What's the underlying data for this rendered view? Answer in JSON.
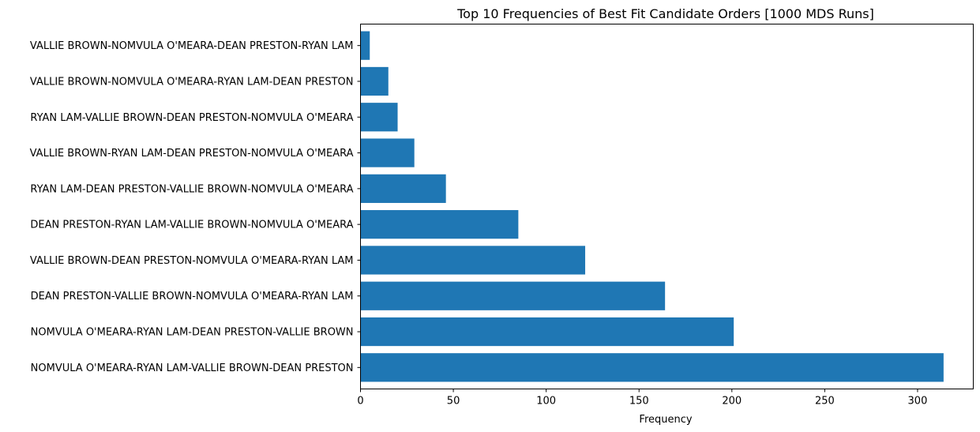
{
  "colors": {
    "bar": "#1f77b4",
    "axis": "#000000",
    "background": "#ffffff"
  },
  "chart_data": {
    "type": "bar",
    "orientation": "horizontal",
    "title": "Top 10 Frequencies of Best Fit Candidate Orders [1000 MDS Runs]",
    "xlabel": "Frequency",
    "ylabel": "",
    "xlim": [
      0,
      330
    ],
    "xticks": [
      0,
      50,
      100,
      150,
      200,
      250,
      300
    ],
    "grid": false,
    "categories": [
      "VALLIE BROWN-NOMVULA O'MEARA-DEAN PRESTON-RYAN LAM",
      "VALLIE BROWN-NOMVULA O'MEARA-RYAN LAM-DEAN PRESTON",
      "RYAN LAM-VALLIE BROWN-DEAN PRESTON-NOMVULA O'MEARA",
      "VALLIE BROWN-RYAN LAM-DEAN PRESTON-NOMVULA O'MEARA",
      "RYAN LAM-DEAN PRESTON-VALLIE BROWN-NOMVULA O'MEARA",
      "DEAN PRESTON-RYAN LAM-VALLIE BROWN-NOMVULA O'MEARA",
      "VALLIE BROWN-DEAN PRESTON-NOMVULA O'MEARA-RYAN LAM",
      "DEAN PRESTON-VALLIE BROWN-NOMVULA O'MEARA-RYAN LAM",
      "NOMVULA O'MEARA-RYAN LAM-DEAN PRESTON-VALLIE BROWN",
      "NOMVULA O'MEARA-RYAN LAM-VALLIE BROWN-DEAN PRESTON"
    ],
    "values": [
      5,
      15,
      20,
      29,
      46,
      85,
      121,
      164,
      201,
      314
    ]
  }
}
